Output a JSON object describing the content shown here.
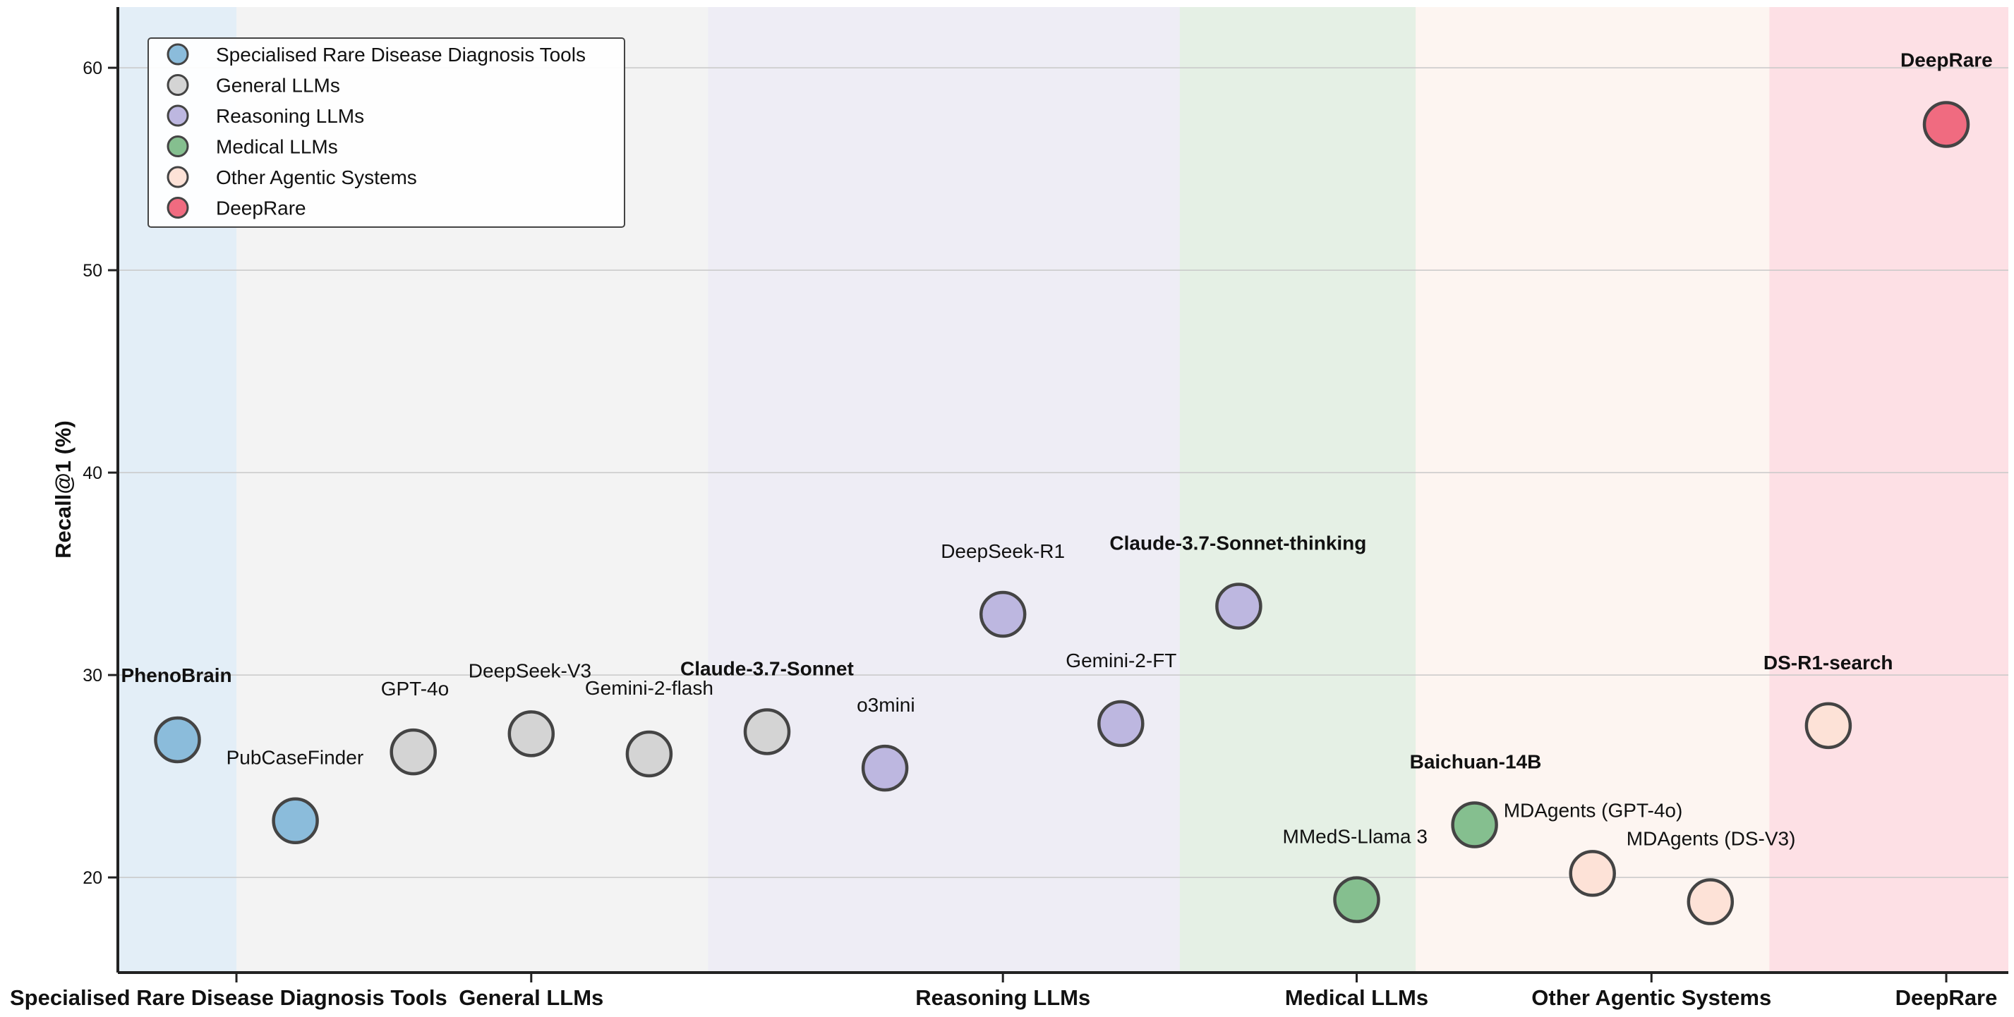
{
  "chart_data": {
    "type": "scatter",
    "xlabel": "",
    "ylabel": "Recall@1 (%)",
    "ylim": [
      15.3,
      63
    ],
    "y_ticks": [
      20,
      30,
      40,
      50,
      60
    ],
    "grid": true,
    "legend_position": "top-left",
    "categories": [
      "Specialised Rare Disease Diagnosis Tools",
      "General LLMs",
      "Reasoning LLMs",
      "Medical LLMs",
      "Other Agentic Systems",
      "DeepRare"
    ],
    "groups": [
      {
        "name": "Specialised Rare Disease Diagnosis Tools",
        "color": "#8bbcdb",
        "band": "#e3eef7",
        "slots": [
          0,
          1
        ]
      },
      {
        "name": "General LLMs",
        "color": "#d4d4d4",
        "band": "#f3f3f3",
        "slots": [
          1,
          5
        ]
      },
      {
        "name": "Reasoning LLMs",
        "color": "#bdb7e0",
        "band": "#eeedf5",
        "slots": [
          5,
          9
        ]
      },
      {
        "name": "Medical LLMs",
        "color": "#85bf8f",
        "band": "#e5f0e5",
        "slots": [
          9,
          11
        ]
      },
      {
        "name": "Other Agentic Systems",
        "color": "#fde2d7",
        "band": "#fdf5f1",
        "slots": [
          11,
          14
        ]
      },
      {
        "name": "DeepRare",
        "color": "#f06b80",
        "band": "#fde0e5",
        "slots": [
          14,
          15
        ]
      }
    ],
    "points": [
      {
        "label": "PhenoBrain",
        "group": 0,
        "slot": 0,
        "y": 26.8,
        "bold": true
      },
      {
        "label": "PubCaseFinder",
        "group": 0,
        "slot": 1,
        "y": 22.8,
        "bold": false
      },
      {
        "label": "GPT-4o",
        "group": 1,
        "slot": 2,
        "y": 26.2,
        "bold": false
      },
      {
        "label": "DeepSeek-V3",
        "group": 1,
        "slot": 3,
        "y": 27.1,
        "bold": false
      },
      {
        "label": "Gemini-2-flash",
        "group": 1,
        "slot": 4,
        "y": 26.1,
        "bold": false
      },
      {
        "label": "Claude-3.7-Sonnet",
        "group": 1,
        "slot": 5,
        "y": 27.2,
        "bold": true
      },
      {
        "label": "o3mini",
        "group": 2,
        "slot": 6,
        "y": 25.4,
        "bold": false
      },
      {
        "label": "DeepSeek-R1",
        "group": 2,
        "slot": 7,
        "y": 33.0,
        "bold": false
      },
      {
        "label": "Gemini-2-FT",
        "group": 2,
        "slot": 8,
        "y": 27.6,
        "bold": false
      },
      {
        "label": "Claude-3.7-Sonnet-thinking",
        "group": 2,
        "slot": 9,
        "y": 33.4,
        "bold": true
      },
      {
        "label": "MMedS-Llama 3",
        "group": 3,
        "slot": 10,
        "y": 18.9,
        "bold": false
      },
      {
        "label": "Baichuan-14B",
        "group": 3,
        "slot": 11,
        "y": 22.6,
        "bold": true
      },
      {
        "label": "MDAgents (GPT-4o)",
        "group": 4,
        "slot": 12,
        "y": 20.2,
        "bold": false
      },
      {
        "label": "MDAgents (DS-V3)",
        "group": 4,
        "slot": 13,
        "y": 18.8,
        "bold": false
      },
      {
        "label": "DS-R1-search",
        "group": 4,
        "slot": 14,
        "y": 27.5,
        "bold": true
      },
      {
        "label": "DeepRare",
        "group": 5,
        "slot": 15,
        "y": 57.2,
        "bold": true
      }
    ]
  }
}
